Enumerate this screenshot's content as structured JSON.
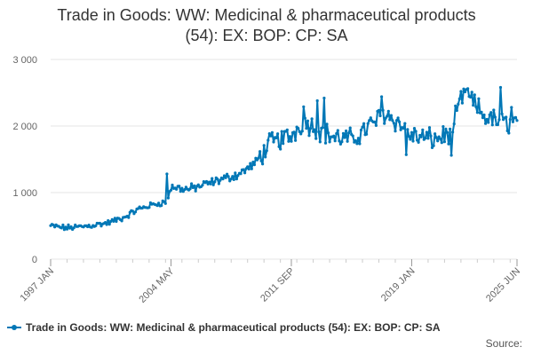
{
  "chart_data": {
    "type": "line",
    "title_line1": "Trade in Goods: WW: Medicinal & pharmaceutical products",
    "title_line2": "(54): EX: BOP: CP: SA",
    "y_ticks": [
      0,
      1000,
      2000,
      3000
    ],
    "y_tick_labels": [
      "0",
      "1 000",
      "2 000",
      "3 000"
    ],
    "ylim": [
      0,
      3000
    ],
    "x_tick_labels": [
      "1997 JAN",
      "2004 MAY",
      "2011 SEP",
      "2019 JAN",
      "2025 JUN"
    ],
    "x_tick_dates": [
      "1997-01",
      "2004-05",
      "2011-09",
      "2019-01",
      "2025-06"
    ],
    "x_start": "1997-01",
    "x_end": "2025-06",
    "grid": true,
    "legend_position": "bottom",
    "colors": {
      "series": "#0077b6",
      "grid": "#e6e6e6"
    },
    "series": [
      {
        "name": "Trade in Goods: WW: Medicinal & pharmaceutical products (54): EX: BOP: CP: SA",
        "anchors": [
          [
            "1997-01",
            500
          ],
          [
            "1997-12",
            470
          ],
          [
            "1999-01",
            490
          ],
          [
            "2000-06",
            540
          ],
          [
            "2001-06",
            620
          ],
          [
            "2002-06",
            760
          ],
          [
            "2003-06",
            830
          ],
          [
            "2004-02",
            860
          ],
          [
            "2004-05",
            1080
          ],
          [
            "2005-06",
            1050
          ],
          [
            "2006-06",
            1120
          ],
          [
            "2007-06",
            1200
          ],
          [
            "2008-06",
            1270
          ],
          [
            "2009-06",
            1430
          ],
          [
            "2010-06",
            1750
          ],
          [
            "2011-09",
            1850
          ],
          [
            "2012-06",
            2080
          ],
          [
            "2013-06",
            1930
          ],
          [
            "2014-06",
            1820
          ],
          [
            "2015-06",
            1800
          ],
          [
            "2016-06",
            2000
          ],
          [
            "2017-06",
            2200
          ],
          [
            "2018-06",
            2000
          ],
          [
            "2019-01",
            1850
          ],
          [
            "2020-06",
            1800
          ],
          [
            "2021-06",
            1900
          ],
          [
            "2022-01",
            2400
          ],
          [
            "2022-06",
            2450
          ],
          [
            "2023-06",
            2150
          ],
          [
            "2024-06",
            2050
          ],
          [
            "2025-06",
            2050
          ]
        ],
        "spikes": [
          [
            "2004-02",
            1280
          ],
          [
            "2012-06",
            2290
          ],
          [
            "2013-04",
            2380
          ],
          [
            "2013-09",
            2420
          ],
          [
            "2017-03",
            2440
          ],
          [
            "2018-09",
            1570
          ],
          [
            "2021-06",
            1560
          ],
          [
            "2022-05",
            2550
          ],
          [
            "2024-06",
            2580
          ],
          [
            "2025-02",
            2280
          ]
        ]
      }
    ]
  },
  "source_label": "Source:"
}
